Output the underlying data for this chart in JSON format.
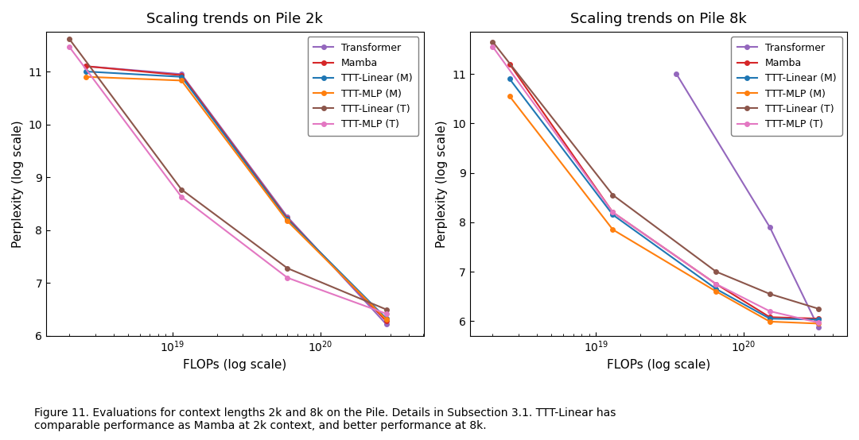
{
  "title_2k": "Scaling trends on Pile 2k",
  "title_8k": "Scaling trends on Pile 8k",
  "xlabel": "FLOPs (log scale)",
  "ylabel": "Perplexity (log scale)",
  "caption": "Figure 11. Evaluations for context lengths 2k and 8k on the Pile. Details in Subsection 3.1. TTT-Linear has\ncomparable performance as Mamba at 2k context, and better performance at 8k.",
  "series_2k": [
    {
      "label": "Transformer",
      "color": "#9467bd",
      "flops": [
        2.6e+18,
        1.15e+19,
        6e+19,
        2.8e+20
      ],
      "ppl": [
        11.1,
        10.95,
        8.25,
        6.22
      ]
    },
    {
      "label": "Mamba",
      "color": "#d62728",
      "flops": [
        2.6e+18,
        1.15e+19,
        6e+19,
        2.8e+20
      ],
      "ppl": [
        11.1,
        10.93,
        8.22,
        6.28
      ]
    },
    {
      "label": "TTT-Linear (M)",
      "color": "#1f77b4",
      "flops": [
        2.6e+18,
        1.15e+19,
        6e+19,
        2.8e+20
      ],
      "ppl": [
        11.0,
        10.9,
        8.2,
        6.33
      ]
    },
    {
      "label": "TTT-MLP (M)",
      "color": "#ff7f0e",
      "flops": [
        2.6e+18,
        1.15e+19,
        6e+19,
        2.8e+20
      ],
      "ppl": [
        10.9,
        10.83,
        8.17,
        6.31
      ]
    },
    {
      "label": "TTT-Linear (T)",
      "color": "#8c564b",
      "flops": [
        2e+18,
        1.15e+19,
        6e+19,
        2.8e+20
      ],
      "ppl": [
        11.62,
        8.77,
        7.28,
        6.5
      ]
    },
    {
      "label": "TTT-MLP (T)",
      "color": "#e377c2",
      "flops": [
        2e+18,
        1.15e+19,
        6e+19,
        2.8e+20
      ],
      "ppl": [
        11.47,
        8.63,
        7.1,
        6.42
      ]
    }
  ],
  "series_8k": [
    {
      "label": "Transformer",
      "color": "#9467bd",
      "flops": [
        3.5e+19,
        1.5e+20,
        3.2e+20
      ],
      "ppl": [
        11.0,
        7.9,
        5.87
      ]
    },
    {
      "label": "Mamba",
      "color": "#d62728",
      "flops": [
        2.6e+18,
        1.3e+19,
        6.5e+19,
        1.5e+20,
        3.2e+20
      ],
      "ppl": [
        11.2,
        8.2,
        6.75,
        6.08,
        6.05
      ]
    },
    {
      "label": "TTT-Linear (M)",
      "color": "#1f77b4",
      "flops": [
        2.6e+18,
        1.3e+19,
        6.5e+19,
        1.5e+20,
        3.2e+20
      ],
      "ppl": [
        10.9,
        8.15,
        6.65,
        6.05,
        6.03
      ]
    },
    {
      "label": "TTT-MLP (M)",
      "color": "#ff7f0e",
      "flops": [
        2.6e+18,
        1.3e+19,
        6.5e+19,
        1.5e+20,
        3.2e+20
      ],
      "ppl": [
        10.55,
        7.85,
        6.6,
        5.99,
        5.95
      ]
    },
    {
      "label": "TTT-Linear (T)",
      "color": "#8c564b",
      "flops": [
        2e+18,
        1.3e+19,
        6.5e+19,
        1.5e+20,
        3.2e+20
      ],
      "ppl": [
        11.65,
        8.55,
        7.0,
        6.55,
        6.25
      ]
    },
    {
      "label": "TTT-MLP (T)",
      "color": "#e377c2",
      "flops": [
        2e+18,
        1.3e+19,
        6.5e+19,
        1.5e+20,
        3.2e+20
      ],
      "ppl": [
        11.55,
        8.2,
        6.75,
        6.2,
        5.97
      ]
    }
  ],
  "ylim_2k": [
    6.0,
    11.75
  ],
  "ylim_8k": [
    5.7,
    11.85
  ],
  "yticks_2k": [
    6,
    7,
    8,
    9,
    10,
    11
  ],
  "yticks_8k": [
    6,
    7,
    8,
    9,
    10,
    11
  ],
  "xlim_2k": [
    1.4e+18,
    5e+20
  ],
  "xlim_8k": [
    1.4e+18,
    5e+20
  ],
  "bg_color": "#ffffff"
}
